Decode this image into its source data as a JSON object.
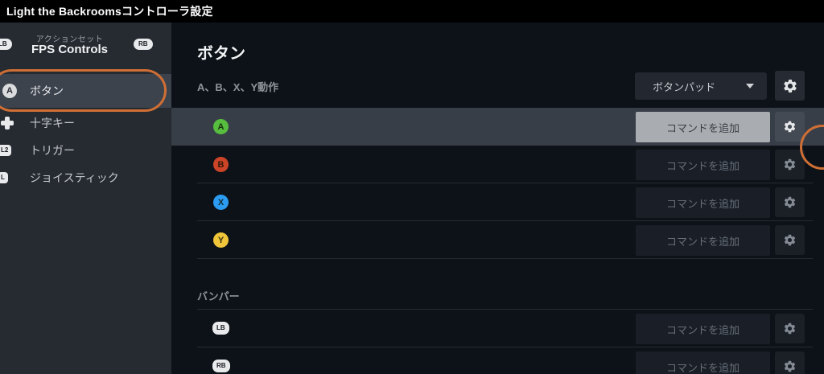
{
  "title": "Light the Backroomsコントローラ設定",
  "colors": {
    "annotation": "#cf6f35",
    "a_button": "#57bd3e",
    "b_button": "#cc4428",
    "x_button": "#2c9cf2",
    "y_button": "#f1c53a"
  },
  "sidebar": {
    "action_set_label": "アクションセット",
    "action_set_name": "FPS Controls",
    "lb_badge": "LB",
    "rb_badge": "RB",
    "items": [
      {
        "label": "ボタン",
        "badge": "A"
      },
      {
        "label": "十字キー"
      },
      {
        "label": "トリガー",
        "badge": "L2"
      },
      {
        "label": "ジョイスティック",
        "badge": "L"
      }
    ]
  },
  "main": {
    "heading": "ボタン",
    "abxy": {
      "label": "A、B、X、Y動作",
      "dropdown_value": "ボタンパッド",
      "rows": [
        {
          "badge": "A",
          "badge_color": "#57bd3e",
          "add_label": "コマンドを追加"
        },
        {
          "badge": "B",
          "badge_color": "#cc4428",
          "add_label": "コマンドを追加"
        },
        {
          "badge": "X",
          "badge_color": "#2c9cf2",
          "add_label": "コマンドを追加"
        },
        {
          "badge": "Y",
          "badge_color": "#f1c53a",
          "add_label": "コマンドを追加"
        }
      ]
    },
    "bumpers": {
      "label": "バンパー",
      "rows": [
        {
          "badge": "LB",
          "add_label": "コマンドを追加"
        },
        {
          "badge": "RB",
          "add_label": "コマンドを追加"
        }
      ]
    }
  }
}
